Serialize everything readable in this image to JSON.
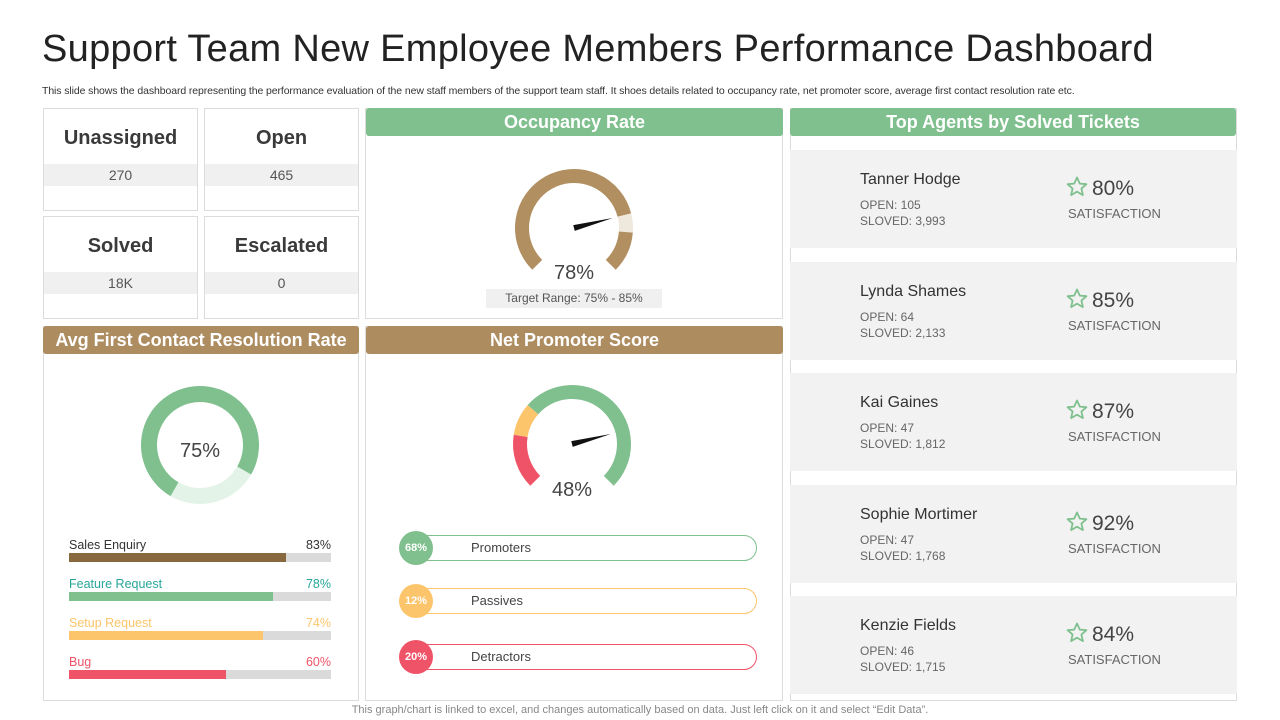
{
  "title": "Support Team New Employee Members Performance Dashboard",
  "subtitle": "This slide shows the dashboard representing the performance evaluation of the new staff members of the support team staff. It shoes details related to occupancy rate, net promoter score, average first contact resolution rate etc.",
  "footer": "This graph/chart is linked to excel, and changes automatically based on data. Just left click on it and select “Edit Data”.",
  "stats": [
    {
      "label": "Unassigned",
      "value": "270"
    },
    {
      "label": "Open",
      "value": "465"
    },
    {
      "label": "Solved",
      "value": "18K"
    },
    {
      "label": "Escalated",
      "value": "0"
    }
  ],
  "occupancy": {
    "header": "Occupancy Rate",
    "value_label": "78%",
    "target": "Target Range: 75% - 85%"
  },
  "fcr": {
    "header": "Avg First Contact Resolution Rate",
    "value_label": "75%"
  },
  "nps": {
    "header": "Net Promoter Score",
    "value_label": "48%"
  },
  "agents_header": "Top Agents by Solved Tickets",
  "agents": [
    {
      "name": "Tanner Hodge",
      "open": "OPEN: 105",
      "solved": "SLOVED: 3,993",
      "pct": "80%",
      "sat": "SATISFACTION"
    },
    {
      "name": "Lynda Shames",
      "open": "OPEN: 64",
      "solved": "SLOVED: 2,133",
      "pct": "85%",
      "sat": "SATISFACTION"
    },
    {
      "name": "Kai Gaines",
      "open": "OPEN: 47",
      "solved": "SLOVED: 1,812",
      "pct": "87%",
      "sat": "SATISFACTION"
    },
    {
      "name": "Sophie Mortimer",
      "open": "OPEN: 47",
      "solved": "SLOVED: 1,768",
      "pct": "92%",
      "sat": "SATISFACTION"
    },
    {
      "name": "Kenzie Fields",
      "open": "OPEN: 46",
      "solved": "SLOVED: 1,715",
      "pct": "84%",
      "sat": "SATISFACTION"
    }
  ],
  "colors": {
    "green": "#7fc08e",
    "brown": "#ad8c60",
    "gauge_brown": "#b18f60",
    "gauge_light": "#efe8dd",
    "light_green": "#e4f3e7",
    "teal": "#26a69a",
    "yellow": "#fcc56b",
    "red": "#ef5367",
    "dark_brown": "#87683f",
    "star": "#7fc08e"
  },
  "chart_data": [
    {
      "type": "gauge",
      "name": "occupancy",
      "value": 78,
      "target_range": [
        75,
        85
      ],
      "range": [
        0,
        100
      ]
    },
    {
      "type": "donut",
      "name": "fcr",
      "value": 75,
      "range": [
        0,
        100
      ]
    },
    {
      "type": "bar",
      "name": "fcr_categories",
      "categories": [
        "Sales Enquiry",
        "Feature Request",
        "Setup Request",
        "Bug"
      ],
      "values": [
        83,
        78,
        74,
        60
      ],
      "labels": [
        "83%",
        "78%",
        "74%",
        "60%"
      ],
      "colors": [
        "#87683f",
        "#7fc08e",
        "#fcc56b",
        "#ef5367"
      ],
      "label_colors": [
        "#333333",
        "#26a69a",
        "#fcc56b",
        "#ef5367"
      ],
      "ylim": [
        0,
        100
      ]
    },
    {
      "type": "gauge",
      "name": "nps",
      "value": 48,
      "segments": [
        {
          "name": "Detractors",
          "value": 20,
          "color": "#ef5367"
        },
        {
          "name": "Passives",
          "value": 12,
          "color": "#fcc56b"
        },
        {
          "name": "Promoters",
          "value": 68,
          "color": "#7fc08e"
        }
      ]
    },
    {
      "type": "bar",
      "name": "nps_breakdown",
      "categories": [
        "Promoters",
        "Passives",
        "Detractors"
      ],
      "values": [
        68,
        12,
        20
      ],
      "labels": [
        "68%",
        "12%",
        "20%"
      ],
      "colors": [
        "#7fc08e",
        "#fcc56b",
        "#ef5367"
      ]
    }
  ]
}
